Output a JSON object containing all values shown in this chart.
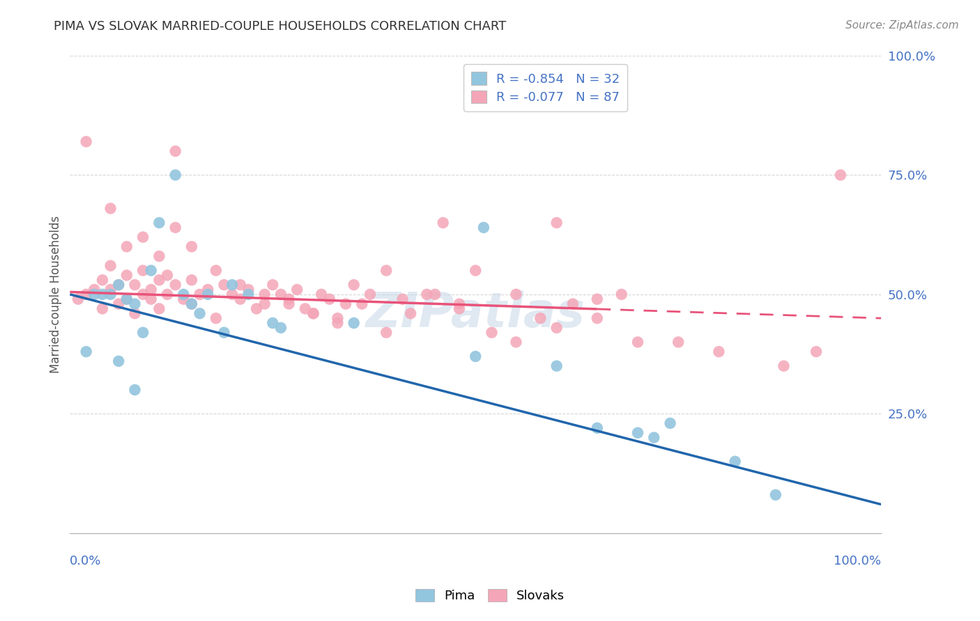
{
  "title": "PIMA VS SLOVAK MARRIED-COUPLE HOUSEHOLDS CORRELATION CHART",
  "source": "Source: ZipAtlas.com",
  "ylabel": "Married-couple Households",
  "pima_R": -0.854,
  "pima_N": 32,
  "slovak_R": -0.077,
  "slovak_N": 87,
  "pima_color": "#92c5de",
  "slovak_color": "#f4a6b8",
  "pima_line_color": "#2166ac",
  "slovak_line_color": "#e8537a",
  "background_color": "#ffffff",
  "grid_color": "#cccccc",
  "axis_label_color": "#4472c4",
  "title_color": "#333333",
  "watermark_color": "#c8d8e8",
  "pima_slope": -0.44,
  "pima_intercept": 0.5,
  "slovak_slope": -0.055,
  "slovak_intercept": 0.505,
  "yticks": [
    0.25,
    0.5,
    0.75,
    1.0
  ],
  "ytick_labels": [
    "25.0%",
    "50.0%",
    "75.0%",
    "100.0%"
  ],
  "xlim": [
    0.0,
    1.0
  ],
  "ylim": [
    0.0,
    1.0
  ],
  "pima_x": [
    0.02,
    0.03,
    0.04,
    0.05,
    0.06,
    0.06,
    0.07,
    0.08,
    0.08,
    0.09,
    0.1,
    0.11,
    0.13,
    0.14,
    0.15,
    0.16,
    0.17,
    0.19,
    0.2,
    0.22,
    0.25,
    0.26,
    0.35,
    0.5,
    0.51,
    0.6,
    0.65,
    0.7,
    0.72,
    0.74,
    0.82,
    0.87
  ],
  "pima_y": [
    0.38,
    0.5,
    0.5,
    0.5,
    0.52,
    0.36,
    0.49,
    0.48,
    0.3,
    0.42,
    0.55,
    0.65,
    0.75,
    0.5,
    0.48,
    0.46,
    0.5,
    0.42,
    0.52,
    0.5,
    0.44,
    0.43,
    0.44,
    0.37,
    0.64,
    0.35,
    0.22,
    0.21,
    0.2,
    0.23,
    0.15,
    0.08
  ],
  "slovak_x": [
    0.01,
    0.02,
    0.02,
    0.03,
    0.04,
    0.04,
    0.05,
    0.05,
    0.06,
    0.06,
    0.07,
    0.07,
    0.08,
    0.08,
    0.09,
    0.09,
    0.1,
    0.1,
    0.11,
    0.11,
    0.12,
    0.12,
    0.13,
    0.13,
    0.14,
    0.15,
    0.15,
    0.16,
    0.17,
    0.18,
    0.19,
    0.2,
    0.21,
    0.22,
    0.23,
    0.24,
    0.25,
    0.26,
    0.27,
    0.28,
    0.29,
    0.3,
    0.31,
    0.32,
    0.33,
    0.34,
    0.35,
    0.37,
    0.39,
    0.41,
    0.44,
    0.46,
    0.48,
    0.5,
    0.52,
    0.55,
    0.58,
    0.6,
    0.62,
    0.65,
    0.68,
    0.05,
    0.07,
    0.09,
    0.11,
    0.13,
    0.15,
    0.18,
    0.21,
    0.24,
    0.27,
    0.3,
    0.33,
    0.36,
    0.39,
    0.42,
    0.45,
    0.48,
    0.55,
    0.6,
    0.65,
    0.7,
    0.75,
    0.8,
    0.88,
    0.92,
    0.95
  ],
  "slovak_y": [
    0.49,
    0.5,
    0.82,
    0.51,
    0.47,
    0.53,
    0.51,
    0.56,
    0.52,
    0.48,
    0.49,
    0.54,
    0.52,
    0.46,
    0.5,
    0.55,
    0.49,
    0.51,
    0.53,
    0.47,
    0.54,
    0.5,
    0.52,
    0.8,
    0.49,
    0.48,
    0.53,
    0.5,
    0.51,
    0.45,
    0.52,
    0.5,
    0.49,
    0.51,
    0.47,
    0.48,
    0.52,
    0.5,
    0.49,
    0.51,
    0.47,
    0.46,
    0.5,
    0.49,
    0.45,
    0.48,
    0.52,
    0.5,
    0.55,
    0.49,
    0.5,
    0.65,
    0.47,
    0.55,
    0.42,
    0.5,
    0.45,
    0.65,
    0.48,
    0.49,
    0.5,
    0.68,
    0.6,
    0.62,
    0.58,
    0.64,
    0.6,
    0.55,
    0.52,
    0.5,
    0.48,
    0.46,
    0.44,
    0.48,
    0.42,
    0.46,
    0.5,
    0.48,
    0.4,
    0.43,
    0.45,
    0.4,
    0.4,
    0.38,
    0.35,
    0.38,
    0.75
  ]
}
